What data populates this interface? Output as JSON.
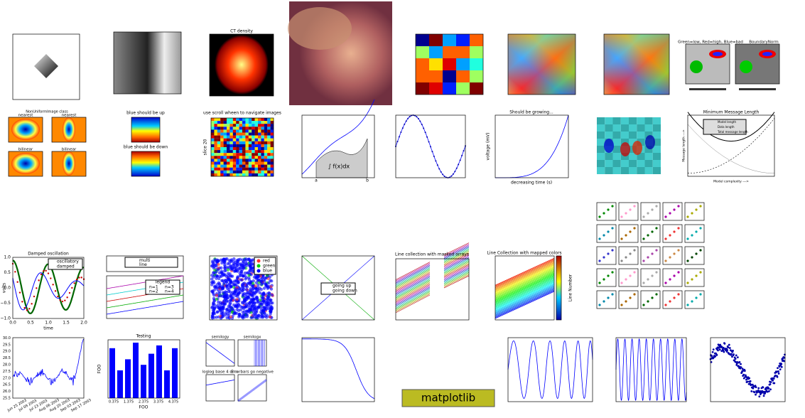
{
  "panels": {
    "ct": {
      "title": "CT density"
    },
    "norms": {
      "title": "Green=low, Red=high, Blue=bad",
      "title2": "BoundaryNorm"
    },
    "nonuniform": {
      "title": "NonUniformImage class",
      "subtitles": [
        "nearest",
        "nearest",
        "bilinear",
        "bilinear"
      ]
    },
    "origin": {
      "titles": [
        "blue should be up",
        "blue should be down"
      ]
    },
    "scroll": {
      "title": "use scroll wheen to navigate images",
      "ylabel": "slice 20"
    },
    "integral": {
      "formula": "∫ f(x)dx",
      "ticks": [
        "a",
        "b"
      ]
    },
    "growing": {
      "title": "Should be growing...",
      "xlabel": "decreasing time (s)",
      "ylabel": "voltage (mV)"
    },
    "mml": {
      "title": "Minimum Message Length",
      "legend": [
        "Model length",
        "Data length",
        "Total message length"
      ],
      "xlabel": "Model complexity --->",
      "ylabel": "Message length --->"
    },
    "damped": {
      "title": "Damped oscillation",
      "legend": [
        "oscillatory",
        "damped"
      ],
      "xlabel": "time",
      "ylabel": "volts",
      "xticks": [
        "0.0",
        "0.5",
        "1.0",
        "1.5",
        "2.0"
      ],
      "yticks": [
        "−1.0",
        "−0.5",
        "0.0",
        "0.5",
        "1.0"
      ]
    },
    "legend": {
      "entries": [
        "multi\nline",
        "n=1",
        "n=2",
        "n=3",
        "n=4"
      ],
      "legend_title": "legend"
    },
    "scatter": {
      "legend": [
        "red",
        "green",
        "blue"
      ]
    },
    "going": {
      "legend": [
        "going up",
        "going down"
      ]
    },
    "masked": {
      "title": "Line collection with masked arrays"
    },
    "mapped": {
      "title": "Line Collection with mapped colors",
      "colorbar_label": "Line Number"
    },
    "dates": {
      "xticks": [
        "Jun 25 2003",
        "Jul 09 2003",
        "Jul 23 2003",
        "Aug 06 2003",
        "Aug 20 2003",
        "Sep 03 2003",
        "Sep 17 2003"
      ],
      "yticks": [
        "25.5",
        "26.0",
        "26.5",
        "27.0",
        "27.5",
        "28.0",
        "28.5",
        "29.0",
        "29.5",
        "30.0"
      ]
    },
    "testing": {
      "title": "Testing",
      "xlabel": "FOO",
      "ylabel": "FOO",
      "xticks": [
        "0.375",
        "1.375",
        "2.375",
        "3.375",
        "4.375"
      ]
    },
    "logs": {
      "titles": [
        "semilogy",
        "semilogx",
        "loglog base 4 on x",
        "Errorbars go negative"
      ]
    },
    "logo": {
      "text": "matplotlib"
    }
  }
}
